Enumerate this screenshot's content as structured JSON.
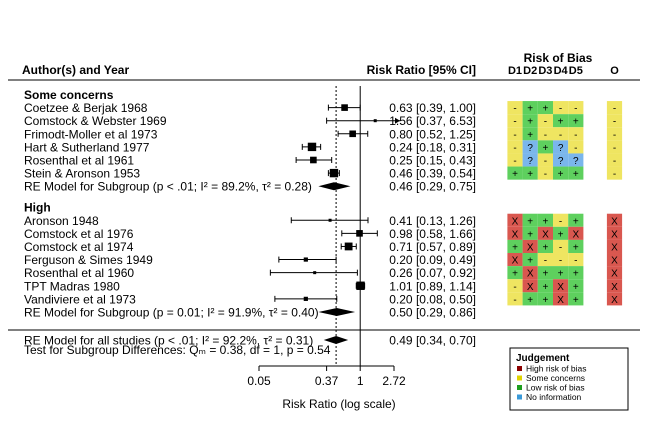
{
  "chart_data": {
    "type": "forest",
    "headers": {
      "study": "Author(s) and Year",
      "estimate": "Risk Ratio [95% CI]",
      "rob_title": "Risk of Bias",
      "rob_domains": [
        "D1",
        "D2",
        "D3",
        "D4",
        "D5",
        "O"
      ]
    },
    "groups": [
      {
        "label": "Some concerns",
        "studies": [
          {
            "name": "Coetzee & Berjak 1968",
            "est": 0.63,
            "lo": 0.39,
            "hi": 1.0,
            "ci": "0.63 [0.39, 1.00]",
            "w": 2.2,
            "rob": [
              "s",
              "l",
              "l",
              "s",
              "s"
            ],
            "overall": "s"
          },
          {
            "name": "Comstock & Webster 1969",
            "est": 1.56,
            "lo": 0.37,
            "hi": 6.53,
            "ci": "1.56 [0.37, 6.53]",
            "w": 1.0,
            "rob": [
              "s",
              "l",
              "s",
              "l",
              "l"
            ],
            "overall": "s"
          },
          {
            "name": "Frimodt-Moller et al 1973",
            "est": 0.8,
            "lo": 0.52,
            "hi": 1.25,
            "ci": "0.80 [0.52, 1.25]",
            "w": 2.2,
            "rob": [
              "s",
              "l",
              "s",
              "s",
              "s"
            ],
            "overall": "s"
          },
          {
            "name": "Hart & Sutherland 1977",
            "est": 0.24,
            "lo": 0.18,
            "hi": 0.31,
            "ci": "0.24 [0.18, 0.31]",
            "w": 2.8,
            "rob": [
              "s",
              "n",
              "l",
              "n",
              "s"
            ],
            "overall": "s"
          },
          {
            "name": "Rosenthal et al 1961",
            "est": 0.25,
            "lo": 0.15,
            "hi": 0.43,
            "ci": "0.25 [0.15, 0.43]",
            "w": 2.2,
            "rob": [
              "s",
              "n",
              "s",
              "n",
              "n"
            ],
            "overall": "s"
          },
          {
            "name": "Stein & Aronson 1953",
            "est": 0.46,
            "lo": 0.39,
            "hi": 0.54,
            "ci": "0.46 [0.39, 0.54]",
            "w": 2.8,
            "rob": [
              "l",
              "l",
              "s",
              "l",
              "l"
            ],
            "overall": "s"
          }
        ],
        "model": {
          "label": "RE Model for Subgroup (p < .01; I² = 89.2%, τ² = 0.28)",
          "est": 0.46,
          "lo": 0.29,
          "hi": 0.75,
          "ci": "0.46 [0.29, 0.75]"
        }
      },
      {
        "label": "High",
        "studies": [
          {
            "name": "Aronson 1948",
            "est": 0.41,
            "lo": 0.13,
            "hi": 1.26,
            "ci": "0.41 [0.13, 1.26]",
            "w": 1.0,
            "rob": [
              "h",
              "l",
              "l",
              "s",
              "l"
            ],
            "overall": "h"
          },
          {
            "name": "Comstock et al 1976",
            "est": 0.98,
            "lo": 0.58,
            "hi": 1.66,
            "ci": "0.98 [0.58, 1.66]",
            "w": 2.2,
            "rob": [
              "h",
              "l",
              "h",
              "l",
              "h"
            ],
            "overall": "h"
          },
          {
            "name": "Comstock et al 1974",
            "est": 0.71,
            "lo": 0.57,
            "hi": 0.89,
            "ci": "0.71 [0.57, 0.89]",
            "w": 2.6,
            "rob": [
              "l",
              "h",
              "l",
              "s",
              "l"
            ],
            "overall": "h"
          },
          {
            "name": "Ferguson & Simes 1949",
            "est": 0.2,
            "lo": 0.09,
            "hi": 0.49,
            "ci": "0.20 [0.09, 0.49]",
            "w": 1.4,
            "rob": [
              "h",
              "l",
              "s",
              "s",
              "s"
            ],
            "overall": "h"
          },
          {
            "name": "Rosenthal et al 1960",
            "est": 0.26,
            "lo": 0.07,
            "hi": 0.92,
            "ci": "0.26 [0.07, 0.92]",
            "w": 1.0,
            "rob": [
              "l",
              "h",
              "l",
              "l",
              "l"
            ],
            "overall": "h"
          },
          {
            "name": "TPT Madras 1980",
            "est": 1.01,
            "lo": 0.89,
            "hi": 1.14,
            "ci": "1.01 [0.89, 1.14]",
            "w": 2.8,
            "rob": [
              "s",
              "h",
              "l",
              "h",
              "l"
            ],
            "overall": "h"
          },
          {
            "name": "Vandiviere et al 1973",
            "est": 0.2,
            "lo": 0.08,
            "hi": 0.5,
            "ci": "0.20 [0.08, 0.50]",
            "w": 1.4,
            "rob": [
              "s",
              "l",
              "l",
              "h",
              "l"
            ],
            "overall": "h"
          }
        ],
        "model": {
          "label": "RE Model for Subgroup (p = 0.01; I² = 91.9%, τ² = 0.40)",
          "est": 0.5,
          "lo": 0.29,
          "hi": 0.86,
          "ci": "0.50 [0.29, 0.86]"
        }
      }
    ],
    "overall": {
      "label": "RE Model for all studies (p < .01; I² = 92.2%, τ² = 0.31)",
      "est": 0.49,
      "lo": 0.34,
      "hi": 0.7,
      "ci": "0.49 [0.34, 0.70]"
    },
    "subgroup_test": "Test for Subgroup Differences: Qₘ = 0.38, df = 1, p = 0.54",
    "x_axis": {
      "label": "Risk Ratio (log scale)",
      "ticks": [
        0.05,
        0.37,
        1,
        2.72
      ],
      "tick_labels": [
        "0.05",
        "0.37",
        "1",
        "2.72"
      ],
      "scale": "log",
      "range": [
        0.05,
        2.72
      ]
    },
    "legend": {
      "title": "Judgement",
      "items": [
        {
          "key": "h",
          "label": "High risk of bias",
          "color": "#8b0000"
        },
        {
          "key": "s",
          "label": "Some concerns",
          "color": "#e0d300"
        },
        {
          "key": "l",
          "label": "Low risk of bias",
          "color": "#1e9e1e"
        },
        {
          "key": "n",
          "label": "No information",
          "color": "#3a9ad9"
        }
      ]
    },
    "rob_colors": {
      "h": "#d9574f",
      "s": "#efe561",
      "l": "#5ed05e",
      "n": "#7ab6ec"
    },
    "rob_symbols": {
      "h": "X",
      "s": "-",
      "l": "+",
      "n": "?"
    }
  }
}
